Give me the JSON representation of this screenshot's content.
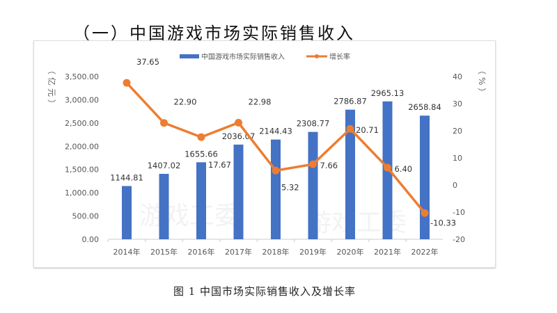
{
  "heading": "（一）中国游戏市场实际销售收入",
  "caption": "图 1 中国市场实际销售收入及增长率",
  "watermark": "游戏工委",
  "chart_data": {
    "type": "bar+line",
    "categories": [
      "2014年",
      "2015年",
      "2016年",
      "2017年",
      "2018年",
      "2019年",
      "2020年",
      "2021年",
      "2022年"
    ],
    "series": [
      {
        "name": "中国游戏市场实际销售收入",
        "type": "bar",
        "axis": "left",
        "color": "#4472C4",
        "values": [
          1144.81,
          1407.02,
          1655.66,
          2036.07,
          2144.43,
          2308.77,
          2786.87,
          2965.13,
          2658.84
        ],
        "labels": [
          "1144.81",
          "1407.02",
          "1655.66",
          "2036.07",
          "2144.43",
          "2308.77",
          "2786.87",
          "2965.13",
          "2658.84"
        ]
      },
      {
        "name": "增长率",
        "type": "line",
        "axis": "right",
        "color": "#ED7D31",
        "values": [
          37.65,
          22.9,
          17.67,
          22.98,
          5.32,
          7.66,
          20.71,
          6.4,
          -10.33
        ],
        "labels": [
          "37.65",
          "22.90",
          "17.67",
          "22.98",
          "5.32",
          "7.66",
          "20.71",
          "6.40",
          "-10.33"
        ]
      }
    ],
    "ylabel_left": "（亿元）",
    "ylabel_right": "（%）",
    "ylim_left": [
      0,
      3500
    ],
    "yticks_left": [
      "0.00",
      "500.00",
      "1,000.00",
      "1,500.00",
      "2,000.00",
      "2,500.00",
      "3,000.00",
      "3,500.00"
    ],
    "ylim_right": [
      -20,
      40
    ],
    "yticks_right": [
      "-20",
      "-10",
      "0",
      "10",
      "20",
      "30",
      "40"
    ],
    "grid": false,
    "legend": "top"
  }
}
